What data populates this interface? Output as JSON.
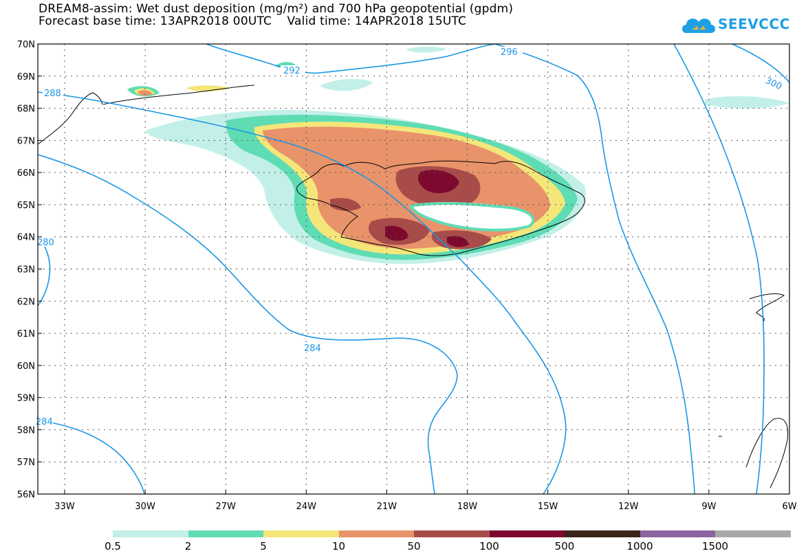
{
  "title": {
    "line1": "DREAM8-assim: Wet dust deposition (mg/m²) and 700 hPa geopotential (gpdm)",
    "line2": "Forecast base time: 13APR2018 00UTC    Valid time: 14APR2018 15UTC"
  },
  "logo": {
    "text": "SEEVCCC",
    "icon": "cloud-icon",
    "color": "#1e9fe6"
  },
  "axes": {
    "lat_labels": [
      "70N",
      "69N",
      "68N",
      "67N",
      "66N",
      "65N",
      "64N",
      "63N",
      "62N",
      "61N",
      "60N",
      "59N",
      "58N",
      "57N",
      "56N"
    ],
    "lon_labels": [
      "33W",
      "30W",
      "27W",
      "24W",
      "21W",
      "18W",
      "15W",
      "12W",
      "9W",
      "6W"
    ]
  },
  "contours": {
    "color": "#1a96e6",
    "labels": [
      "292",
      "296",
      "300",
      "288",
      "280",
      "284",
      "284"
    ]
  },
  "legend": {
    "labels": [
      "0.5",
      "2",
      "5",
      "10",
      "50",
      "100",
      "500",
      "1000",
      "1500"
    ],
    "colors": [
      "#c2f0e8",
      "#5fdcb4",
      "#f5e67a",
      "#e8936a",
      "#a84c4a",
      "#7d0a2e",
      "#3a2418",
      "#8c64a0",
      "#a8a8a8"
    ]
  }
}
